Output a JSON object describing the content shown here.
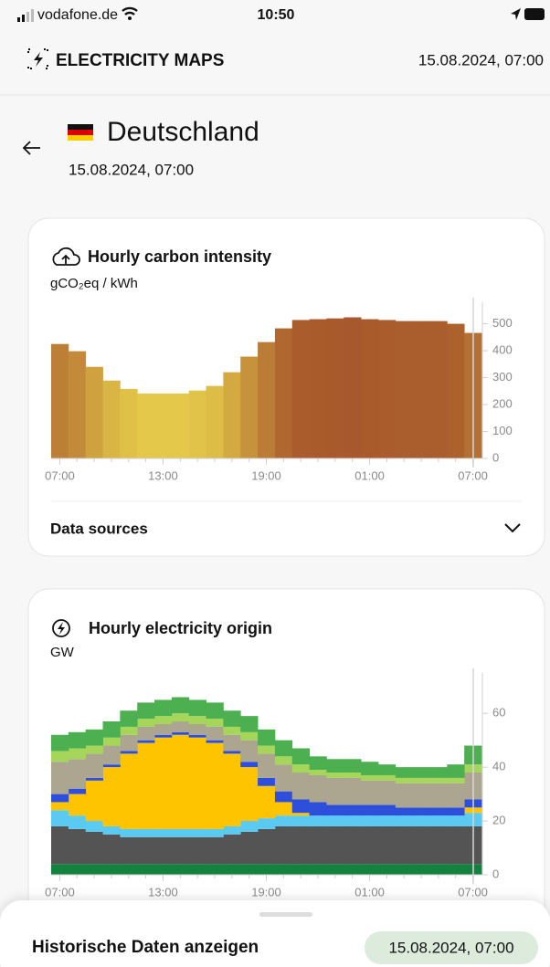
{
  "status_bar": {
    "carrier": "vodafone.de",
    "time": "10:50"
  },
  "header": {
    "title": "ELECTRICITY MAPS",
    "datetime": "15.08.2024, 07:00"
  },
  "zone": {
    "name": "Deutschland",
    "datetime": "15.08.2024, 07:00"
  },
  "data_sources": "Data sources",
  "bottom_sheet": {
    "label": "Historische Daten anzeigen",
    "datetime": "15.08.2024, 07:00"
  },
  "chart_data": [
    {
      "type": "bar",
      "title": "Hourly carbon intensity",
      "y_label": "gCO₂eq / kWh",
      "categories": [
        "07:00",
        null,
        null,
        null,
        null,
        null,
        "13:00",
        null,
        null,
        null,
        null,
        null,
        "19:00",
        null,
        null,
        null,
        null,
        null,
        "01:00",
        null,
        null,
        null,
        null,
        null,
        "07:00"
      ],
      "values": [
        425,
        398,
        340,
        289,
        258,
        241,
        241,
        241,
        252,
        269,
        320,
        378,
        432,
        483,
        514,
        517,
        520,
        524,
        517,
        514,
        510,
        510,
        510,
        500,
        466
      ],
      "ylim": [
        0,
        580
      ],
      "yticks": [
        0,
        100,
        200,
        300,
        400,
        500
      ]
    },
    {
      "type": "stacked_area",
      "title": "Hourly electricity origin",
      "y_label": "GW",
      "categories": [
        "07:00",
        null,
        null,
        null,
        null,
        null,
        "13:00",
        null,
        null,
        null,
        null,
        null,
        "19:00",
        null,
        null,
        null,
        null,
        null,
        "01:00",
        null,
        null,
        null,
        null,
        null,
        "07:00"
      ],
      "series": [
        {
          "color": "#14823f",
          "values": [
            4,
            4,
            4,
            4,
            4,
            4,
            4,
            4,
            4,
            4,
            4,
            4,
            4,
            4,
            4,
            4,
            4,
            4,
            4,
            4,
            4,
            4,
            4,
            4,
            4
          ]
        },
        {
          "color": "#545454",
          "values": [
            14,
            13,
            12,
            11,
            10,
            10,
            10,
            10,
            10,
            10,
            11,
            12,
            13,
            14,
            14,
            14,
            14,
            14,
            14,
            14,
            14,
            14,
            14,
            14,
            14
          ]
        },
        {
          "color": "#5bcaf2",
          "values": [
            6,
            5,
            4,
            3,
            3,
            3,
            3,
            3,
            3,
            3,
            3,
            4,
            4,
            4,
            4,
            4,
            4,
            4,
            4,
            4,
            4,
            4,
            4,
            4,
            5
          ]
        },
        {
          "color": "#ffc400",
          "values": [
            3,
            8,
            15,
            22,
            28,
            32,
            34,
            35,
            34,
            32,
            27,
            20,
            12,
            5,
            1,
            0,
            0,
            0,
            0,
            0,
            0,
            0,
            0,
            0,
            2
          ]
        },
        {
          "color": "#2d4fdc",
          "values": [
            3,
            2,
            1,
            1,
            1,
            1,
            1,
            1,
            1,
            1,
            1,
            2,
            3,
            4,
            5,
            5,
            4,
            4,
            4,
            4,
            3,
            3,
            3,
            3,
            3
          ]
        },
        {
          "color": "#aca690",
          "values": [
            12,
            11,
            9,
            7,
            6,
            5,
            4,
            4,
            4,
            5,
            6,
            8,
            9,
            10,
            10,
            10,
            10,
            10,
            9,
            9,
            9,
            9,
            9,
            9,
            10
          ]
        },
        {
          "color": "#a5d65a",
          "values": [
            4,
            4,
            3,
            3,
            3,
            3,
            3,
            3,
            3,
            3,
            3,
            3,
            3,
            3,
            3,
            2,
            2,
            2,
            2,
            2,
            2,
            2,
            2,
            2,
            3
          ]
        },
        {
          "color": "#4caf50",
          "values": [
            6,
            6,
            6,
            6,
            6,
            6,
            6,
            6,
            6,
            6,
            6,
            6,
            6,
            6,
            6,
            5,
            5,
            5,
            5,
            4,
            4,
            4,
            4,
            5,
            7
          ]
        }
      ],
      "ylim": [
        0,
        75
      ],
      "yticks": [
        0,
        20,
        40,
        60
      ]
    }
  ]
}
